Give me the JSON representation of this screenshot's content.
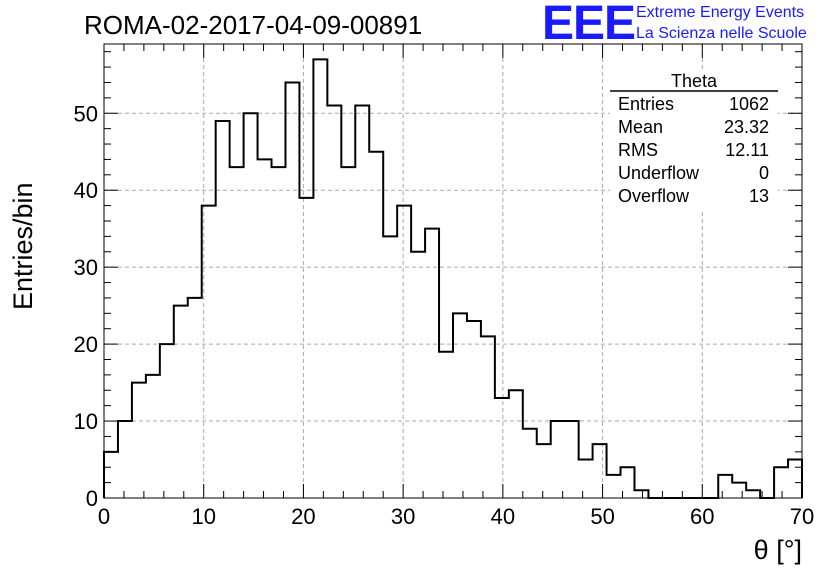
{
  "header": {
    "title": "ROMA-02-2017-04-09-00891",
    "logo_text": "EEE",
    "logo_line1": "Extreme Energy Events",
    "logo_line2": "La Scienza nelle Scuole"
  },
  "colors": {
    "logo": "#1a1aff",
    "histogram": "#000000",
    "grid": "#aaaaaa"
  },
  "stats_box": {
    "title": "Theta",
    "rows": [
      {
        "label": "Entries",
        "value": "1062"
      },
      {
        "label": "Mean",
        "value": "23.32"
      },
      {
        "label": "RMS",
        "value": "12.11"
      },
      {
        "label": "Underflow",
        "value": "0"
      },
      {
        "label": "Overflow",
        "value": "13"
      }
    ]
  },
  "chart_data": {
    "type": "bar",
    "histogram": true,
    "xlabel": "θ [°]",
    "ylabel": "Entries/bin",
    "xlim": [
      0,
      70
    ],
    "ylim": [
      0,
      59
    ],
    "grid": true,
    "bin_width": 1.4,
    "x_ticks": [
      0,
      10,
      20,
      30,
      40,
      50,
      60,
      70
    ],
    "y_ticks": [
      0,
      10,
      20,
      30,
      40,
      50
    ],
    "values": [
      6,
      10,
      15,
      16,
      20,
      25,
      26,
      38,
      49,
      43,
      50,
      44,
      43,
      54,
      39,
      57,
      51,
      43,
      51,
      45,
      34,
      38,
      32,
      35,
      19,
      24,
      23,
      21,
      13,
      14,
      9,
      7,
      10,
      10,
      5,
      7,
      3,
      4,
      1,
      0,
      0,
      0,
      0,
      0,
      3,
      2,
      1,
      0,
      4,
      5
    ]
  }
}
